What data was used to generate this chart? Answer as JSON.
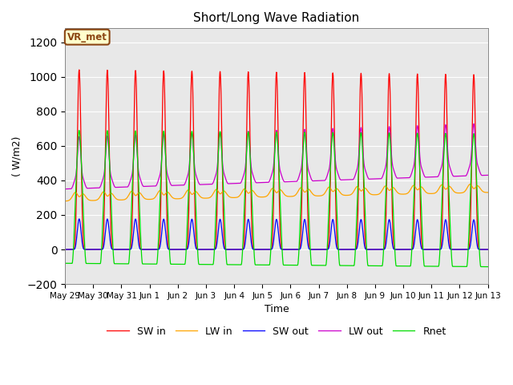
{
  "title": "Short/Long Wave Radiation",
  "xlabel": "Time",
  "ylabel": "( W/m2)",
  "ylim": [
    -200,
    1280
  ],
  "yticks": [
    -200,
    0,
    200,
    400,
    600,
    800,
    1000,
    1200
  ],
  "background_color": "#ffffff",
  "plot_bg_color": "#e8e8e8",
  "grid_color": "#ffffff",
  "legend_label": "VR_met",
  "series_colors": {
    "SW in": "#ff0000",
    "LW in": "#ffa500",
    "SW out": "#0000ff",
    "LW out": "#cc00cc",
    "Rnet": "#00dd00"
  },
  "n_days": 15,
  "tick_labels": [
    "May 29",
    "May 30",
    "May 31",
    "Jun 1",
    "Jun 2",
    "Jun 3",
    "Jun 4",
    "Jun 5",
    "Jun 6",
    "Jun 7",
    "Jun 8",
    "Jun 9",
    "Jun 10",
    "Jun 11",
    "Jun 12",
    "Jun 13"
  ]
}
